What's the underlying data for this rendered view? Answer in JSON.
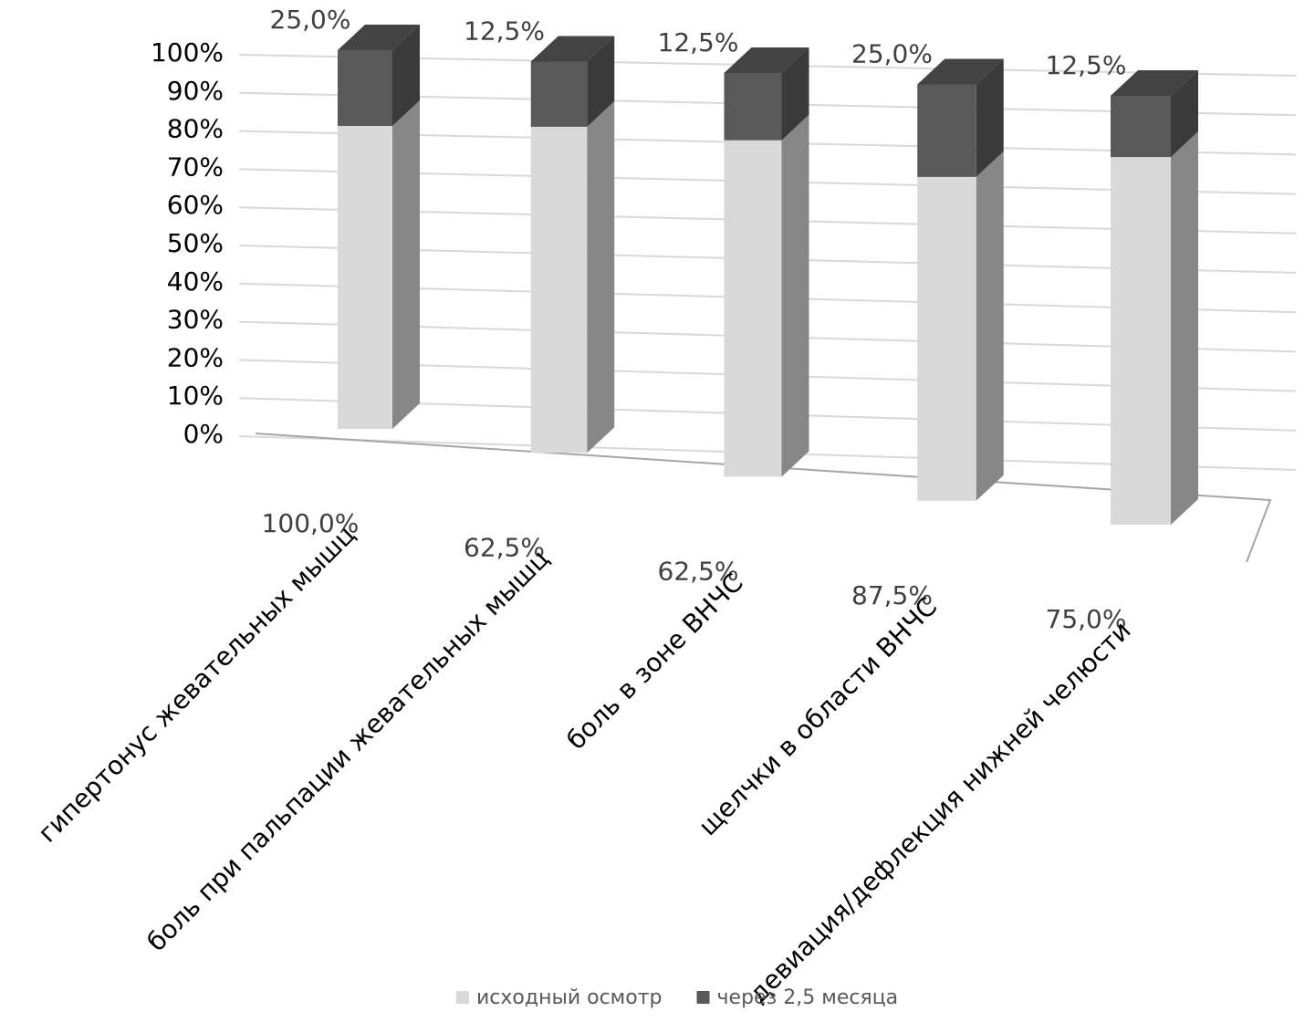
{
  "chart_data": {
    "type": "bar3d",
    "stacking": "percent",
    "categories": [
      "гипертонус жевательных мышц",
      "боль при пальпации жевательных мышц",
      "боль в зоне ВНЧС",
      "щелчки в области ВНЧС",
      "девиация/дефлекция нижней челюсти"
    ],
    "series": [
      {
        "name": "исходный осмотр",
        "color": "#d9d9d9",
        "values": [
          100,
          62.5,
          62.5,
          87.5,
          75
        ],
        "value_labels": [
          "100,0%",
          "62,5%",
          "62,5%",
          "87,5%",
          "75,0%"
        ]
      },
      {
        "name": "через 2,5 месяца",
        "color": "#595959",
        "values": [
          25,
          12.5,
          12.5,
          25,
          12.5
        ],
        "value_labels": [
          "25,0%",
          "12,5%",
          "12,5%",
          "25,0%",
          "12,5%"
        ]
      }
    ],
    "ylim": [
      0,
      100
    ],
    "yticks": [
      {
        "value": 0,
        "label": "0%"
      },
      {
        "value": 10,
        "label": "10%"
      },
      {
        "value": 20,
        "label": "20%"
      },
      {
        "value": 30,
        "label": "30%"
      },
      {
        "value": 40,
        "label": "40%"
      },
      {
        "value": 50,
        "label": "50%"
      },
      {
        "value": 60,
        "label": "60%"
      },
      {
        "value": 70,
        "label": "70%"
      },
      {
        "value": 80,
        "label": "80%"
      },
      {
        "value": 90,
        "label": "90%"
      },
      {
        "value": 100,
        "label": "100%"
      }
    ],
    "grid": true,
    "legend": "bottom"
  }
}
